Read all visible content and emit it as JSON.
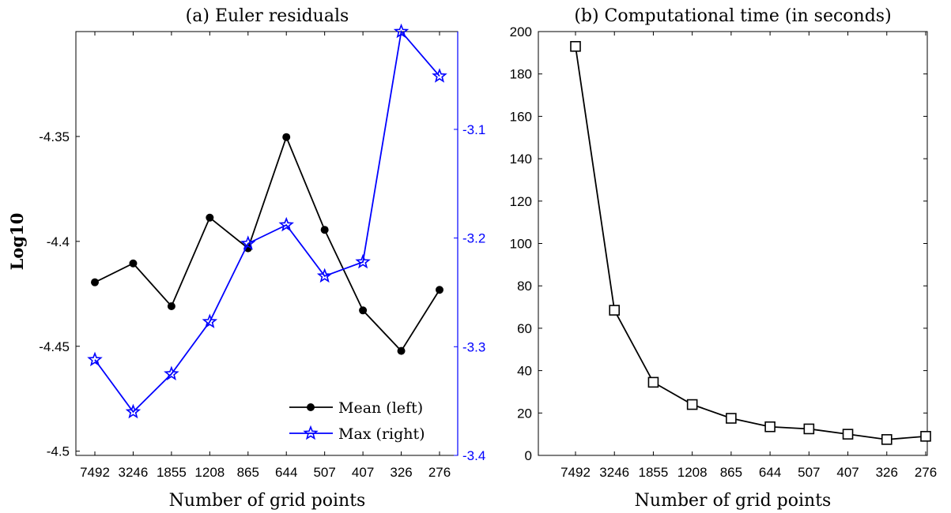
{
  "chart_data": [
    {
      "type": "line",
      "title": "(a) Euler residuals",
      "xlabel": "Number of grid points",
      "ylabel": "Log10",
      "categories": [
        "7492",
        "3246",
        "1855",
        "1208",
        "865",
        "644",
        "507",
        "407",
        "326",
        "276"
      ],
      "ylim_left": [
        -4.502,
        -4.3
      ],
      "ylim_right": [
        -3.4,
        -3.01
      ],
      "yticks_left": [
        "-4.5",
        "-4.45",
        "-4.4",
        "-4.35"
      ],
      "yticks_right": [
        "-3.4",
        "-3.3",
        "-3.2",
        "-3.1"
      ],
      "grid": false,
      "legend_position": "bottom-right",
      "series": [
        {
          "name": "Mean (left)",
          "axis": "left",
          "marker": "circle",
          "color": "#000000",
          "values": [
            -4.4195,
            -4.4105,
            -4.4309,
            -4.3887,
            -4.4033,
            -4.3503,
            -4.3945,
            -4.4329,
            -4.4522,
            -4.4231
          ]
        },
        {
          "name": "Max (right)",
          "axis": "right",
          "marker": "star",
          "color": "#0000ff",
          "values": [
            -3.312,
            -3.36,
            -3.325,
            -3.277,
            -3.205,
            -3.188,
            -3.235,
            -3.222,
            -3.01,
            -3.051
          ]
        }
      ]
    },
    {
      "type": "line",
      "title": "(b) Computational time (in seconds)",
      "xlabel": "Number of grid points",
      "ylabel": "",
      "categories": [
        "7492",
        "3246",
        "1855",
        "1208",
        "865",
        "644",
        "507",
        "407",
        "326",
        "276"
      ],
      "ylim": [
        0,
        200
      ],
      "yticks": [
        "0",
        "20",
        "40",
        "60",
        "80",
        "100",
        "120",
        "140",
        "160",
        "180",
        "200"
      ],
      "grid": false,
      "series": [
        {
          "name": "",
          "marker": "square",
          "color": "#000000",
          "values": [
            193,
            68.5,
            34.5,
            24,
            17.5,
            13.5,
            12.5,
            10,
            7.5,
            9
          ]
        }
      ]
    }
  ]
}
